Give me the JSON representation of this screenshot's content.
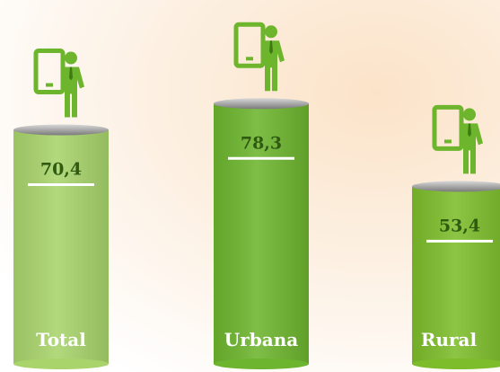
{
  "chart_data": {
    "type": "bar",
    "categories": [
      "Total",
      "Urbana",
      "Rural"
    ],
    "values": [
      70.4,
      78.3,
      53.4
    ],
    "value_labels": [
      "70,4",
      "78,3",
      "53,4"
    ],
    "colors": [
      "#a9d46c",
      "#6db52e",
      "#7dbd2b"
    ]
  }
}
